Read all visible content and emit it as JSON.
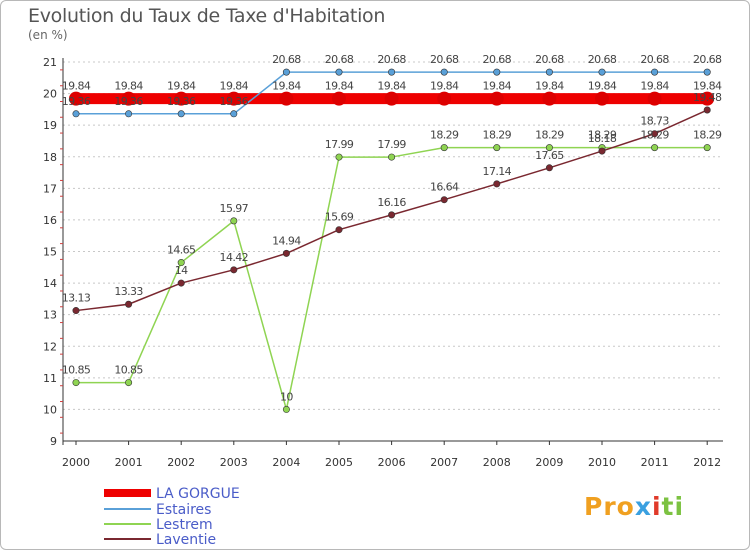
{
  "chart_data": {
    "type": "line",
    "title": "Evolution du Taux de Taxe d'Habitation",
    "subtitle": "(en %)",
    "x": [
      2000,
      2001,
      2002,
      2003,
      2004,
      2005,
      2006,
      2007,
      2008,
      2009,
      2010,
      2011,
      2012
    ],
    "ylim": [
      9,
      21
    ],
    "yticks": [
      9,
      10,
      11,
      12,
      13,
      14,
      15,
      16,
      17,
      18,
      19,
      20,
      21
    ],
    "grid": "horizontal-dashed",
    "legend_position": "bottom-left",
    "series": [
      {
        "name": "LA GORGUE",
        "color": "#ee0000",
        "values": [
          19.84,
          19.84,
          19.84,
          19.84,
          19.84,
          19.84,
          19.84,
          19.84,
          19.84,
          19.84,
          19.84,
          19.84,
          19.84
        ],
        "labels": [
          "19.84",
          "19.84",
          "19.84",
          "19.84",
          "19.84",
          "19.84",
          "19.84",
          "19.84",
          "19.84",
          "19.84",
          "19.84",
          "19.84",
          "19.84"
        ]
      },
      {
        "name": "Estaires",
        "color": "#5aa0d8",
        "values": [
          19.36,
          19.36,
          19.36,
          19.36,
          20.68,
          20.68,
          20.68,
          20.68,
          20.68,
          20.68,
          20.68,
          20.68,
          20.68
        ],
        "labels": [
          "19.36",
          "19.36",
          "19.36",
          "19.36",
          "20.68",
          "20.68",
          "20.68",
          "20.68",
          "20.68",
          "20.68",
          "20.68",
          "20.68",
          "20.68"
        ]
      },
      {
        "name": "Lestrem",
        "color": "#8fd452",
        "values": [
          10.85,
          10.85,
          14.65,
          15.97,
          10,
          17.99,
          17.99,
          18.29,
          18.29,
          18.29,
          18.29,
          18.29,
          18.29
        ],
        "labels": [
          "10.85",
          "10.85",
          "14.65",
          "15.97",
          "10",
          "17.99",
          "17.99",
          "18.29",
          "18.29",
          "18.29",
          "18.29",
          "18.29",
          "18.29"
        ]
      },
      {
        "name": "Laventie",
        "color": "#7a2830",
        "values": [
          13.13,
          13.33,
          14,
          14.42,
          14.94,
          15.69,
          16.16,
          16.64,
          17.14,
          17.65,
          18.18,
          18.73,
          19.48
        ],
        "labels": [
          "13.13",
          "13.33",
          "14",
          "14.42",
          "14.94",
          "15.69",
          "16.16",
          "16.64",
          "17.14",
          "17.65",
          "18.18",
          "18.73",
          "19.48"
        ]
      }
    ]
  },
  "logo": {
    "text": [
      "Pro",
      "x",
      "i",
      "ti"
    ]
  }
}
